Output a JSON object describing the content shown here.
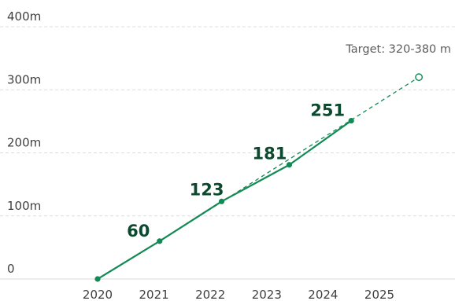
{
  "chart_data": {
    "type": "line",
    "title": "",
    "xlabel": "",
    "ylabel": "",
    "ylim": [
      0,
      400
    ],
    "y_ticks": [
      {
        "value": 0,
        "label": "0"
      },
      {
        "value": 100,
        "label": "100m"
      },
      {
        "value": 200,
        "label": "200m"
      },
      {
        "value": 300,
        "label": "300m"
      },
      {
        "value": 400,
        "label": "400m"
      }
    ],
    "x_ticks": [
      "2020",
      "2021",
      "2022",
      "2023",
      "2024",
      "2025"
    ],
    "grid": "horizontal dashed",
    "series": [
      {
        "style": "solid line with markers",
        "color": "#138a55",
        "points": [
          {
            "x": 2020,
            "y": 0,
            "label": ""
          },
          {
            "x": 2021.1,
            "y": 60,
            "label": "60"
          },
          {
            "x": 2022.2,
            "y": 123,
            "label": "123"
          },
          {
            "x": 2023.4,
            "y": 181,
            "label": "181"
          },
          {
            "x": 2024.5,
            "y": 251,
            "label": "251"
          }
        ]
      },
      {
        "style": "dashed trend line with hollow end marker",
        "color": "#138a55",
        "points": [
          {
            "x": 2021.1,
            "y": 60
          },
          {
            "x": 2025.7,
            "y": 320
          }
        ]
      }
    ],
    "annotations": [
      {
        "text": "Target: 320-380 m",
        "x": 2025.7,
        "y": 320
      }
    ]
  }
}
